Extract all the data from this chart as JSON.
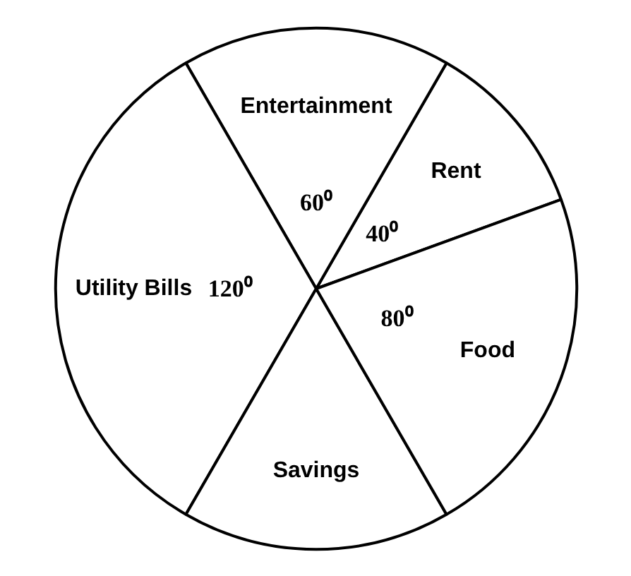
{
  "chart_data": {
    "type": "pie",
    "categories": [
      "Rent",
      "Entertainment",
      "Utility Bills",
      "Savings",
      "Food"
    ],
    "values": [
      40,
      60,
      120,
      60,
      80
    ],
    "value_labels": [
      "40⁰",
      "60⁰",
      "120⁰",
      null,
      "80⁰"
    ],
    "colors": [
      "#ffffff",
      "#ffffff",
      "#ffffff",
      "#ffffff",
      "#ffffff"
    ]
  }
}
